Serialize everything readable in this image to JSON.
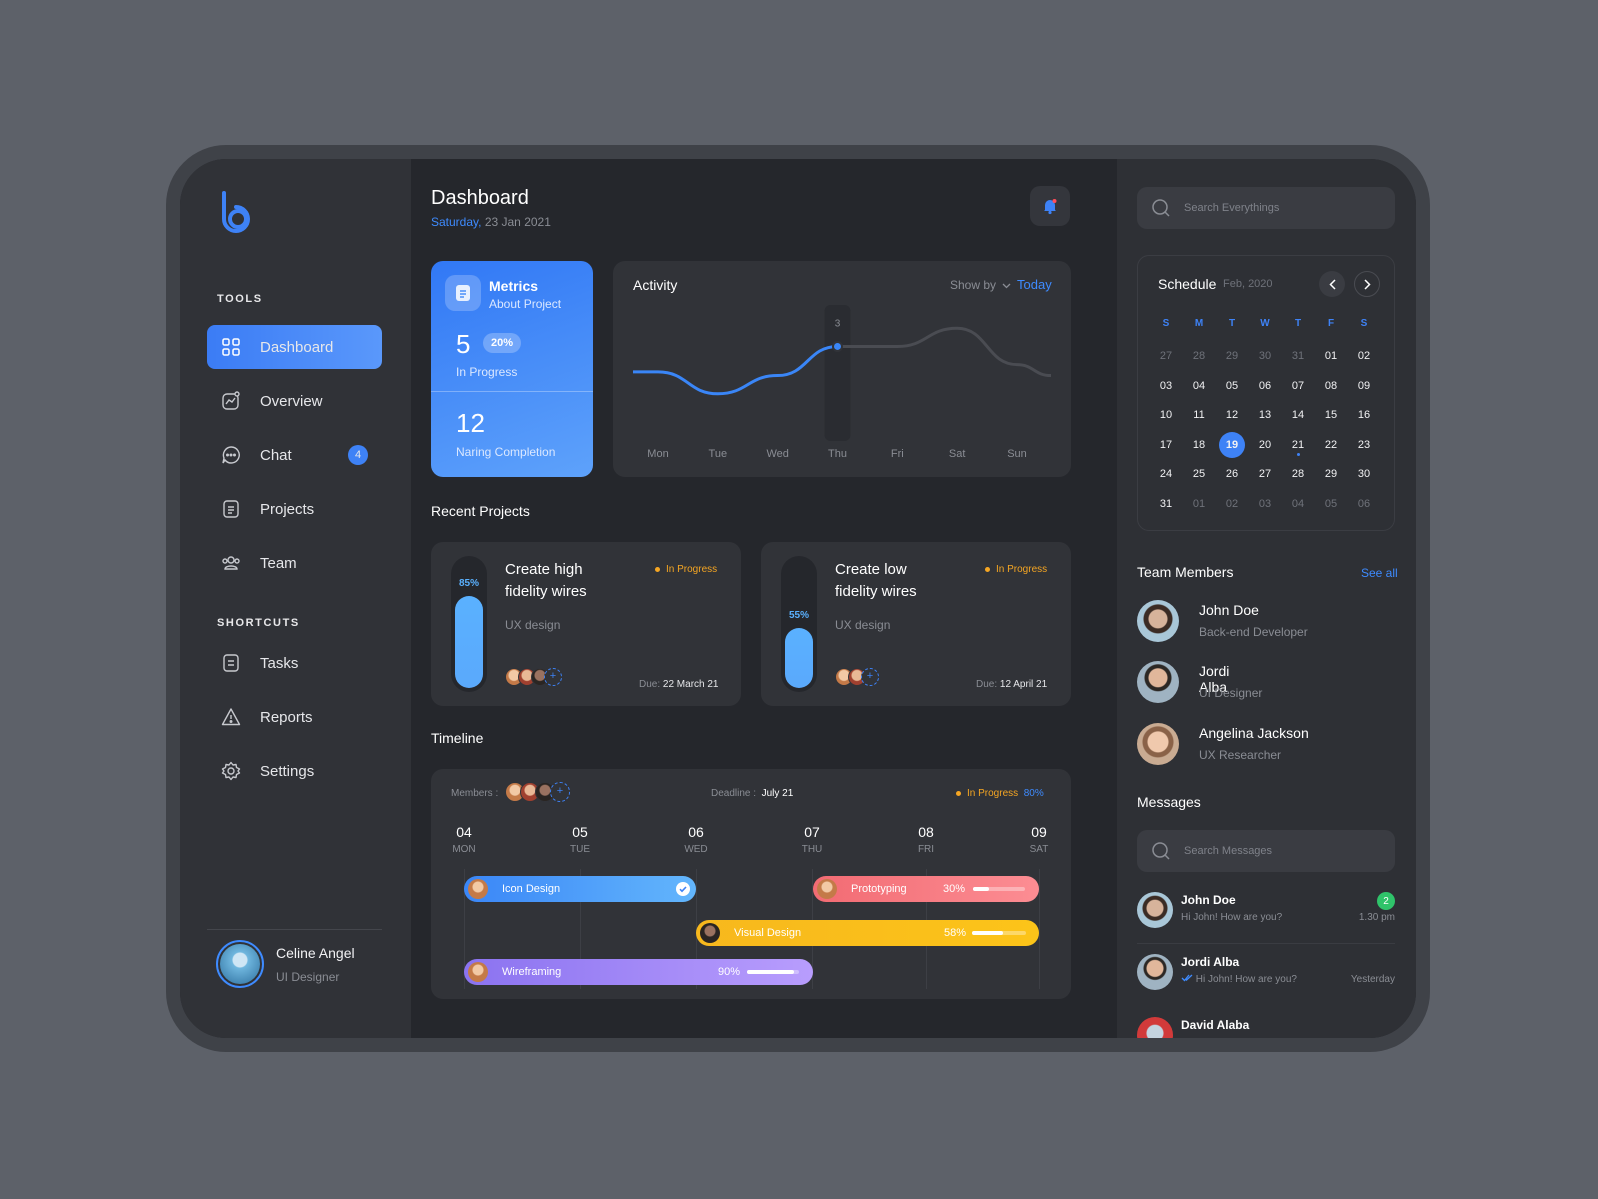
{
  "sidebar": {
    "tools_title": "TOOLS",
    "shortcuts_title": "SHORTCUTS",
    "items": [
      {
        "label": "Dashboard"
      },
      {
        "label": "Overview"
      },
      {
        "label": "Chat",
        "badge": "4"
      },
      {
        "label": "Projects"
      },
      {
        "label": "Team"
      },
      {
        "label": "Tasks"
      },
      {
        "label": "Reports"
      },
      {
        "label": "Settings"
      }
    ],
    "user": {
      "name": "Celine Angel",
      "role": "UI Designer"
    }
  },
  "header": {
    "title": "Dashboard",
    "day": "Saturday,",
    "date": "23 Jan 2021"
  },
  "metrics": {
    "title": "Metrics",
    "subtitle": "About Project",
    "in_progress_value": "5",
    "in_progress_pct": "20%",
    "in_progress_label": "In Progress",
    "completion_value": "12",
    "completion_label": "Naring Completion"
  },
  "activity": {
    "title": "Activity",
    "show_by": "Show by",
    "period": "Today",
    "tooltip": "3"
  },
  "chart_data": {
    "type": "line",
    "title": "Activity",
    "categories": [
      "Mon",
      "Tue",
      "Wed",
      "Thu",
      "Fri",
      "Sat",
      "Sun"
    ],
    "series": [
      {
        "values": [
          2.2,
          1.6,
          2.1,
          2.9,
          2.9,
          3.4,
          2.4
        ]
      }
    ],
    "highlight": {
      "category": "Thu",
      "label": "3"
    },
    "grid": false
  },
  "recent_projects": {
    "title": "Recent Projects",
    "items": [
      {
        "title_line1": "Create high",
        "title_line2": "fidelity wires",
        "status": "In Progress",
        "category": "UX design",
        "progress": 85,
        "progress_label": "85%",
        "due_label": "Due:",
        "due_date": "22 March 21"
      },
      {
        "title_line1": "Create low",
        "title_line2": "fidelity wires",
        "status": "In Progress",
        "category": "UX design",
        "progress": 55,
        "progress_label": "55%",
        "due_label": "Due:",
        "due_date": "12 April 21"
      }
    ]
  },
  "timeline": {
    "title": "Timeline",
    "members_label": "Members :",
    "deadline_label": "Deadline :",
    "deadline": "July 21",
    "status": "In Progress",
    "status_pct": "80%",
    "days": [
      {
        "num": "04",
        "name": "MON"
      },
      {
        "num": "05",
        "name": "TUE"
      },
      {
        "num": "06",
        "name": "WED"
      },
      {
        "num": "07",
        "name": "THU"
      },
      {
        "num": "08",
        "name": "FRI"
      },
      {
        "num": "09",
        "name": "SAT"
      }
    ],
    "tasks": [
      {
        "label": "Icon Design",
        "done": true
      },
      {
        "label": "Prototyping",
        "pct_label": "30%",
        "pct": 0.3
      },
      {
        "label": "Visual Design",
        "pct_label": "58%",
        "pct": 0.58
      },
      {
        "label": "Wireframing",
        "pct_label": "90%",
        "pct": 0.9
      }
    ]
  },
  "search": {
    "placeholder": "Search Everythings"
  },
  "schedule": {
    "title": "Schedule",
    "month": "Feb, 2020",
    "weekdays": [
      "S",
      "M",
      "T",
      "W",
      "T",
      "F",
      "S"
    ],
    "weeks": [
      [
        "27",
        "28",
        "29",
        "30",
        "31",
        "01",
        "02"
      ],
      [
        "03",
        "04",
        "05",
        "06",
        "07",
        "08",
        "09"
      ],
      [
        "10",
        "11",
        "12",
        "13",
        "14",
        "15",
        "16"
      ],
      [
        "17",
        "18",
        "19",
        "20",
        "21",
        "22",
        "23"
      ],
      [
        "24",
        "25",
        "26",
        "27",
        "28",
        "29",
        "30"
      ],
      [
        "31",
        "01",
        "02",
        "03",
        "04",
        "05",
        "06"
      ]
    ],
    "selected": "19"
  },
  "team": {
    "title": "Team Members",
    "see_all": "See all",
    "members": [
      {
        "name": "John Doe",
        "role": "Back-end Developer"
      },
      {
        "name_line1": "Jordi",
        "name_line2": "Alba",
        "role": "UI Designer"
      },
      {
        "name": "Angelina Jackson",
        "role": "UX Researcher"
      }
    ]
  },
  "messages": {
    "title": "Messages",
    "search_placeholder": "Search Messages",
    "items": [
      {
        "name": "John Doe",
        "text": "Hi John! How are you?",
        "time": "1.30 pm",
        "unread": "2"
      },
      {
        "name": "Jordi Alba",
        "text": "Hi John! How are you?",
        "time": "Yesterday"
      },
      {
        "name": "David Alaba"
      }
    ]
  }
}
